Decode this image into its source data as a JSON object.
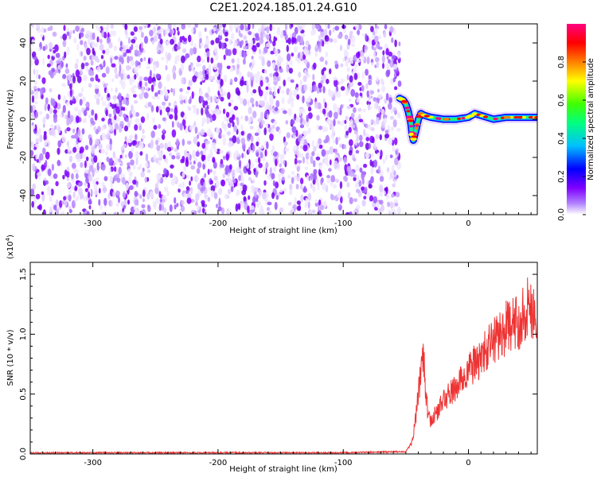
{
  "title": "C2E1.2024.185.01.24.G10",
  "chart_data": [
    {
      "type": "heatmap",
      "xlabel": "Height of straight line (km)",
      "ylabel": "Frequency (Hz)",
      "xlim": [
        -350,
        55
      ],
      "ylim": [
        -50,
        50
      ],
      "xticks": [
        -300,
        -200,
        -100,
        0
      ],
      "yticks": [
        -40,
        -20,
        0,
        20,
        40
      ],
      "colorbar": {
        "label": "Normalized spectral amplitude",
        "range": [
          0.0,
          1.0
        ],
        "ticks": [
          "0.0",
          "0.2",
          "0.4",
          "0.6",
          "0.8"
        ],
        "colors": [
          "#ffffff",
          "#8000ff",
          "#0000ff",
          "#00c0ff",
          "#00ff80",
          "#40ff00",
          "#ffff00",
          "#ff8000",
          "#ff0000",
          "#ff0080"
        ]
      },
      "noise_region": {
        "x": [
          -350,
          -55
        ],
        "y": [
          -50,
          50
        ],
        "amplitude": [
          0.0,
          0.25
        ],
        "color": "#8000ff"
      },
      "signal_track": [
        {
          "x": -55,
          "y": 11
        },
        {
          "x": -52,
          "y": 10
        },
        {
          "x": -50,
          "y": 8
        },
        {
          "x": -48,
          "y": 4
        },
        {
          "x": -46,
          "y": -2
        },
        {
          "x": -45,
          "y": -8
        },
        {
          "x": -44,
          "y": -11
        },
        {
          "x": -42,
          "y": -6
        },
        {
          "x": -40,
          "y": 0
        },
        {
          "x": -38,
          "y": 3
        },
        {
          "x": -35,
          "y": 2
        },
        {
          "x": -30,
          "y": 1
        },
        {
          "x": -20,
          "y": 0
        },
        {
          "x": -10,
          "y": 0
        },
        {
          "x": 0,
          "y": 1
        },
        {
          "x": 5,
          "y": 3
        },
        {
          "x": 10,
          "y": 2
        },
        {
          "x": 20,
          "y": 0
        },
        {
          "x": 30,
          "y": 1
        },
        {
          "x": 40,
          "y": 1
        },
        {
          "x": 50,
          "y": 1
        },
        {
          "x": 55,
          "y": 1
        }
      ]
    },
    {
      "type": "line",
      "xlabel": "Height of straight line (km)",
      "ylabel": "SNR (10 * v/v)",
      "yscale_note": "(x10⁴)",
      "xlim": [
        -350,
        55
      ],
      "ylim": [
        0.0,
        1.6
      ],
      "xticks": [
        -300,
        -200,
        -100,
        0
      ],
      "yticks": [
        "0.0",
        "0.5",
        "1.0",
        "1.5"
      ],
      "line_color": "#ee3333",
      "series": [
        {
          "x": [
            -350,
            -300,
            -200,
            -100,
            -50,
            -45,
            -42,
            -38,
            -36,
            -34,
            -32,
            -30,
            -25,
            -20,
            -10,
            0,
            10,
            20,
            30,
            40,
            45,
            50,
            55
          ],
          "values": [
            0.01,
            0.01,
            0.01,
            0.01,
            0.02,
            0.1,
            0.3,
            0.7,
            0.9,
            0.5,
            0.3,
            0.28,
            0.35,
            0.45,
            0.55,
            0.7,
            0.8,
            0.95,
            1.05,
            1.1,
            1.2,
            1.25,
            1.1
          ]
        }
      ]
    }
  ]
}
